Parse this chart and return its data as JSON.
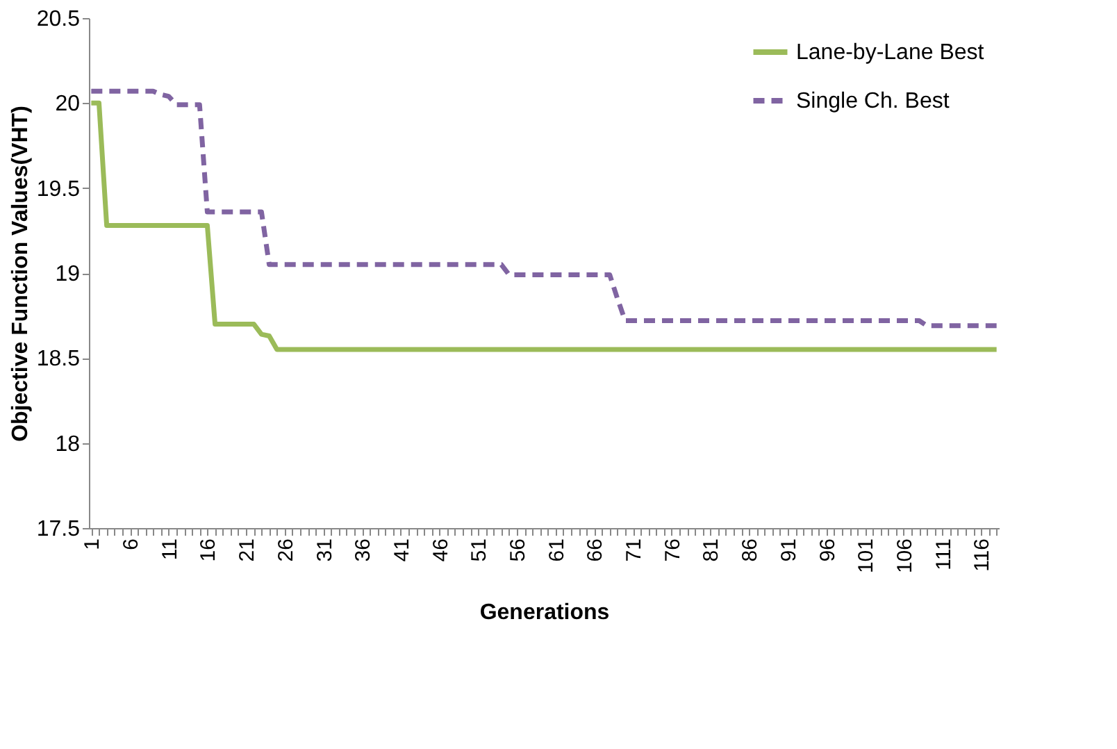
{
  "chart_data": {
    "type": "line",
    "xlabel": "Generations",
    "ylabel": "Objective Function Values(VHT)",
    "categories": [
      "1",
      null,
      null,
      null,
      null,
      "6",
      null,
      null,
      null,
      null,
      "11",
      null,
      null,
      null,
      null,
      "16",
      null,
      null,
      null,
      null,
      "21",
      null,
      null,
      null,
      null,
      "26",
      null,
      null,
      null,
      null,
      "31",
      null,
      null,
      null,
      null,
      "36",
      null,
      null,
      null,
      null,
      "41",
      null,
      null,
      null,
      null,
      "46",
      null,
      null,
      null,
      null,
      "51",
      null,
      null,
      null,
      null,
      "56",
      null,
      null,
      null,
      null,
      "61",
      null,
      null,
      null,
      null,
      "66",
      null,
      null,
      null,
      null,
      "71",
      null,
      null,
      null,
      null,
      "76",
      null,
      null,
      null,
      null,
      "81",
      null,
      null,
      null,
      null,
      "86",
      null,
      null,
      null,
      null,
      "91",
      null,
      null,
      null,
      null,
      "96",
      null,
      null,
      null,
      null,
      "101",
      null,
      null,
      null,
      null,
      "106",
      null,
      null,
      null,
      null,
      "111",
      null,
      null,
      null,
      null,
      "116",
      null,
      null
    ],
    "series": [
      {
        "name": "Lane-by-Lane Best",
        "color": "#9bbb59",
        "line_style": "solid",
        "values": [
          20.0,
          20.0,
          19.28,
          19.28,
          19.28,
          19.28,
          19.28,
          19.28,
          19.28,
          19.28,
          19.28,
          19.28,
          19.28,
          19.28,
          19.28,
          19.28,
          18.7,
          18.7,
          18.7,
          18.7,
          18.7,
          18.7,
          18.64,
          18.63,
          18.55,
          18.55,
          18.55,
          18.55,
          18.55,
          18.55,
          18.55,
          18.55,
          18.55,
          18.55,
          18.55,
          18.55,
          18.55,
          18.55,
          18.55,
          18.55,
          18.55,
          18.55,
          18.55,
          18.55,
          18.55,
          18.55,
          18.55,
          18.55,
          18.55,
          18.55,
          18.55,
          18.55,
          18.55,
          18.55,
          18.55,
          18.55,
          18.55,
          18.55,
          18.55,
          18.55,
          18.55,
          18.55,
          18.55,
          18.55,
          18.55,
          18.55,
          18.55,
          18.55,
          18.55,
          18.55,
          18.55,
          18.55,
          18.55,
          18.55,
          18.55,
          18.55,
          18.55,
          18.55,
          18.55,
          18.55,
          18.55,
          18.55,
          18.55,
          18.55,
          18.55,
          18.55,
          18.55,
          18.55,
          18.55,
          18.55,
          18.55,
          18.55,
          18.55,
          18.55,
          18.55,
          18.55,
          18.55,
          18.55,
          18.55,
          18.55,
          18.55,
          18.55,
          18.55,
          18.55,
          18.55,
          18.55,
          18.55,
          18.55,
          18.55,
          18.55,
          18.55,
          18.55,
          18.55,
          18.55,
          18.55,
          18.55,
          18.55,
          18.55
        ]
      },
      {
        "name": "Single Ch. Best",
        "color": "#8064a2",
        "line_style": "dashed",
        "values": [
          20.07,
          20.07,
          20.07,
          20.07,
          20.07,
          20.07,
          20.07,
          20.07,
          20.07,
          20.05,
          20.04,
          19.99,
          19.99,
          19.99,
          19.99,
          19.36,
          19.36,
          19.36,
          19.36,
          19.36,
          19.36,
          19.36,
          19.36,
          19.05,
          19.05,
          19.05,
          19.05,
          19.05,
          19.05,
          19.05,
          19.05,
          19.05,
          19.05,
          19.05,
          19.05,
          19.05,
          19.05,
          19.05,
          19.05,
          19.05,
          19.05,
          19.05,
          19.05,
          19.05,
          19.05,
          19.05,
          19.05,
          19.05,
          19.05,
          19.05,
          19.05,
          19.05,
          19.05,
          19.05,
          18.99,
          18.99,
          18.99,
          18.99,
          18.99,
          18.99,
          18.99,
          18.99,
          18.99,
          18.99,
          18.99,
          18.99,
          18.99,
          18.99,
          18.85,
          18.72,
          18.72,
          18.72,
          18.72,
          18.72,
          18.72,
          18.72,
          18.72,
          18.72,
          18.72,
          18.72,
          18.72,
          18.72,
          18.72,
          18.72,
          18.72,
          18.72,
          18.72,
          18.72,
          18.72,
          18.72,
          18.72,
          18.72,
          18.72,
          18.72,
          18.72,
          18.72,
          18.72,
          18.72,
          18.72,
          18.72,
          18.72,
          18.72,
          18.72,
          18.72,
          18.72,
          18.72,
          18.72,
          18.72,
          18.69,
          18.69,
          18.69,
          18.69,
          18.69,
          18.69,
          18.69,
          18.69,
          18.69,
          18.69
        ]
      }
    ],
    "ylim": [
      17.5,
      20.5
    ],
    "yticks": [
      17.5,
      18,
      18.5,
      19,
      19.5,
      20,
      20.5
    ],
    "grid": false,
    "legend": "top right"
  }
}
